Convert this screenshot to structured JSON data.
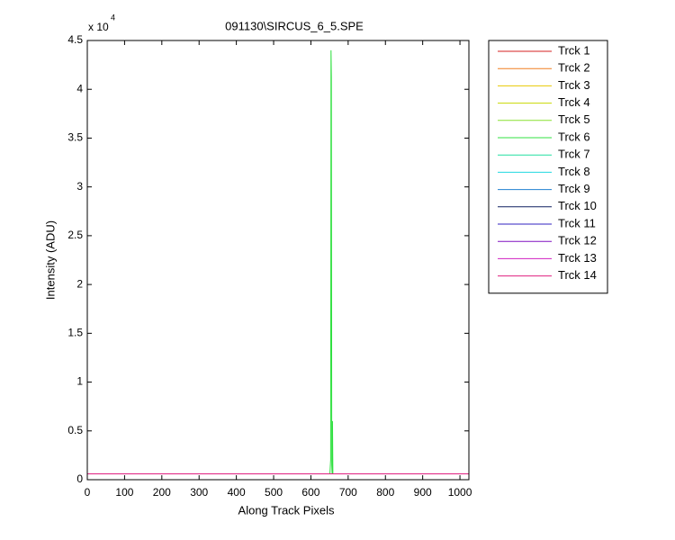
{
  "chart_data": {
    "type": "line",
    "title": "091130\\SIRCUS_6_5.SPE",
    "x_label": "Along Track Pixels",
    "y_label": "Intensity (ADU)",
    "y_multiplier": "x 10",
    "y_multiplier_exponent": "4",
    "xlim": [
      0,
      1024
    ],
    "xticks": [
      0,
      100,
      200,
      300,
      400,
      500,
      600,
      700,
      800,
      900,
      1000
    ],
    "ylim": [
      0,
      4.5
    ],
    "yticks": [
      0,
      0.5,
      1,
      1.5,
      2,
      2.5,
      3,
      3.5,
      4,
      4.5
    ],
    "grid": false,
    "legend_position": "outside-right",
    "x": [
      0,
      651,
      653,
      654,
      655,
      656,
      657,
      658,
      659,
      661,
      1024
    ],
    "series": [
      {
        "name": "Trck 1",
        "color": "#d42020",
        "values": [
          0.06,
          0.06,
          0.06,
          0.06,
          0.06,
          0.06,
          0.06,
          0.06,
          0.06,
          0.06,
          0.06
        ]
      },
      {
        "name": "Trck 2",
        "color": "#f07f20",
        "values": [
          0.06,
          0.06,
          0.06,
          0.06,
          0.06,
          0.06,
          0.06,
          0.06,
          0.06,
          0.06,
          0.06
        ]
      },
      {
        "name": "Trck 3",
        "color": "#e8c800",
        "values": [
          0.06,
          0.06,
          0.06,
          0.06,
          0.06,
          0.06,
          0.06,
          0.06,
          0.06,
          0.06,
          0.06
        ]
      },
      {
        "name": "Trck 4",
        "color": "#c8d800",
        "values": [
          0.06,
          0.06,
          0.06,
          0.06,
          0.06,
          0.06,
          0.06,
          0.06,
          0.06,
          0.06,
          0.06
        ]
      },
      {
        "name": "Trck 5",
        "color": "#88e030",
        "values": [
          0.06,
          0.06,
          0.06,
          0.06,
          0.06,
          0.06,
          0.06,
          0.06,
          0.06,
          0.06,
          0.06
        ]
      },
      {
        "name": "Trck 6",
        "color": "#30e040",
        "values": [
          0.06,
          0.06,
          0.2,
          4.4,
          4.12,
          0.15,
          0.06,
          0.6,
          0.06,
          0.06,
          0.06
        ]
      },
      {
        "name": "Trck 7",
        "color": "#20e0a0",
        "values": [
          0.06,
          0.06,
          0.06,
          0.06,
          0.06,
          0.06,
          0.06,
          0.06,
          0.06,
          0.06,
          0.06
        ]
      },
      {
        "name": "Trck 8",
        "color": "#20d8e0",
        "values": [
          0.06,
          0.06,
          0.06,
          0.06,
          0.06,
          0.06,
          0.06,
          0.06,
          0.06,
          0.06,
          0.06
        ]
      },
      {
        "name": "Trck 9",
        "color": "#2080d0",
        "values": [
          0.06,
          0.06,
          0.06,
          0.06,
          0.06,
          0.06,
          0.06,
          0.06,
          0.06,
          0.06,
          0.06
        ]
      },
      {
        "name": "Trck 10",
        "color": "#102060",
        "values": [
          0.06,
          0.06,
          0.06,
          0.06,
          0.06,
          0.06,
          0.06,
          0.06,
          0.06,
          0.06,
          0.06
        ]
      },
      {
        "name": "Trck 11",
        "color": "#3020c0",
        "values": [
          0.06,
          0.06,
          0.06,
          0.06,
          0.06,
          0.06,
          0.06,
          0.06,
          0.06,
          0.06,
          0.06
        ]
      },
      {
        "name": "Trck 12",
        "color": "#8010c0",
        "values": [
          0.06,
          0.06,
          0.06,
          0.06,
          0.06,
          0.06,
          0.06,
          0.06,
          0.06,
          0.06,
          0.06
        ]
      },
      {
        "name": "Trck 13",
        "color": "#d020c0",
        "values": [
          0.06,
          0.06,
          0.06,
          0.06,
          0.06,
          0.06,
          0.06,
          0.06,
          0.06,
          0.06,
          0.06
        ]
      },
      {
        "name": "Trck 14",
        "color": "#e02080",
        "values": [
          0.06,
          0.06,
          0.06,
          0.06,
          0.06,
          0.06,
          0.06,
          0.06,
          0.06,
          0.06,
          0.06
        ]
      }
    ]
  }
}
